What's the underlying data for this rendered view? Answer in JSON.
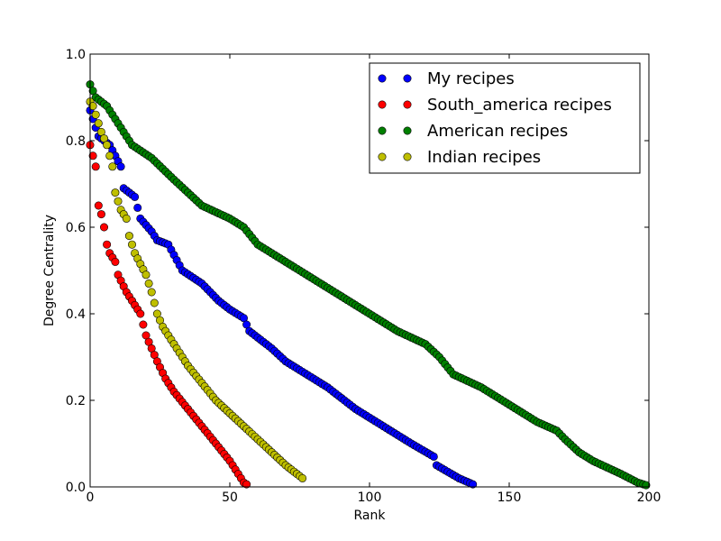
{
  "chart_data": {
    "type": "scatter",
    "title": "",
    "xlabel": "Rank",
    "ylabel": "Degree Centrality",
    "xlim": [
      0,
      200
    ],
    "ylim": [
      0,
      1.0
    ],
    "xticks": [
      0,
      50,
      100,
      150,
      200
    ],
    "yticks": [
      0.0,
      0.2,
      0.4,
      0.6,
      0.8,
      1.0
    ],
    "xtick_labels": [
      "0",
      "50",
      "100",
      "150",
      "200"
    ],
    "ytick_labels": [
      "0.0",
      "0.2",
      "0.4",
      "0.6",
      "0.8",
      "1.0"
    ],
    "grid": false,
    "legend_position": "top-right",
    "series": [
      {
        "name": "My recipes",
        "color": "#0000ff",
        "count": 138,
        "anchors": [
          [
            0,
            0.87
          ],
          [
            1,
            0.85
          ],
          [
            3,
            0.81
          ],
          [
            7,
            0.79
          ],
          [
            11,
            0.74
          ],
          [
            12,
            0.69
          ],
          [
            16,
            0.67
          ],
          [
            18,
            0.62
          ],
          [
            22,
            0.59
          ],
          [
            24,
            0.57
          ],
          [
            28,
            0.56
          ],
          [
            33,
            0.5
          ],
          [
            40,
            0.47
          ],
          [
            46,
            0.43
          ],
          [
            50,
            0.41
          ],
          [
            55,
            0.39
          ],
          [
            57,
            0.36
          ],
          [
            65,
            0.32
          ],
          [
            70,
            0.29
          ],
          [
            75,
            0.27
          ],
          [
            85,
            0.23
          ],
          [
            95,
            0.18
          ],
          [
            105,
            0.14
          ],
          [
            115,
            0.1
          ],
          [
            123,
            0.07
          ],
          [
            124,
            0.05
          ],
          [
            132,
            0.02
          ],
          [
            137,
            0.006
          ]
        ]
      },
      {
        "name": "South_america recipes",
        "color": "#ff0000",
        "count": 57,
        "anchors": [
          [
            0,
            0.79
          ],
          [
            2,
            0.74
          ],
          [
            3,
            0.65
          ],
          [
            4,
            0.63
          ],
          [
            5,
            0.6
          ],
          [
            6,
            0.56
          ],
          [
            7,
            0.54
          ],
          [
            9,
            0.52
          ],
          [
            10,
            0.49
          ],
          [
            13,
            0.45
          ],
          [
            15,
            0.43
          ],
          [
            18,
            0.4
          ],
          [
            20,
            0.35
          ],
          [
            22,
            0.32
          ],
          [
            24,
            0.29
          ],
          [
            27,
            0.25
          ],
          [
            30,
            0.22
          ],
          [
            35,
            0.18
          ],
          [
            40,
            0.14
          ],
          [
            45,
            0.1
          ],
          [
            50,
            0.06
          ],
          [
            53,
            0.03
          ],
          [
            55,
            0.01
          ],
          [
            56,
            0.006
          ]
        ]
      },
      {
        "name": "American recipes",
        "color": "#008000",
        "count": 200,
        "anchors": [
          [
            0,
            0.93
          ],
          [
            2,
            0.9
          ],
          [
            6,
            0.88
          ],
          [
            10,
            0.84
          ],
          [
            15,
            0.79
          ],
          [
            22,
            0.76
          ],
          [
            30,
            0.71
          ],
          [
            40,
            0.65
          ],
          [
            50,
            0.62
          ],
          [
            55,
            0.6
          ],
          [
            60,
            0.56
          ],
          [
            70,
            0.52
          ],
          [
            80,
            0.48
          ],
          [
            90,
            0.44
          ],
          [
            100,
            0.4
          ],
          [
            110,
            0.36
          ],
          [
            120,
            0.33
          ],
          [
            125,
            0.3
          ],
          [
            130,
            0.26
          ],
          [
            140,
            0.23
          ],
          [
            150,
            0.19
          ],
          [
            160,
            0.15
          ],
          [
            167,
            0.13
          ],
          [
            170,
            0.11
          ],
          [
            175,
            0.08
          ],
          [
            180,
            0.06
          ],
          [
            190,
            0.03
          ],
          [
            196,
            0.01
          ],
          [
            199,
            0.004
          ]
        ]
      },
      {
        "name": "Indian recipes",
        "color": "#bfbf00",
        "count": 77,
        "anchors": [
          [
            0,
            0.89
          ],
          [
            1,
            0.88
          ],
          [
            2,
            0.86
          ],
          [
            4,
            0.82
          ],
          [
            6,
            0.79
          ],
          [
            8,
            0.74
          ],
          [
            9,
            0.68
          ],
          [
            11,
            0.64
          ],
          [
            13,
            0.62
          ],
          [
            14,
            0.58
          ],
          [
            16,
            0.54
          ],
          [
            20,
            0.49
          ],
          [
            22,
            0.45
          ],
          [
            24,
            0.4
          ],
          [
            26,
            0.37
          ],
          [
            30,
            0.33
          ],
          [
            35,
            0.28
          ],
          [
            40,
            0.24
          ],
          [
            45,
            0.2
          ],
          [
            50,
            0.17
          ],
          [
            55,
            0.14
          ],
          [
            60,
            0.11
          ],
          [
            65,
            0.08
          ],
          [
            70,
            0.05
          ],
          [
            74,
            0.03
          ],
          [
            76,
            0.02
          ]
        ]
      }
    ]
  }
}
